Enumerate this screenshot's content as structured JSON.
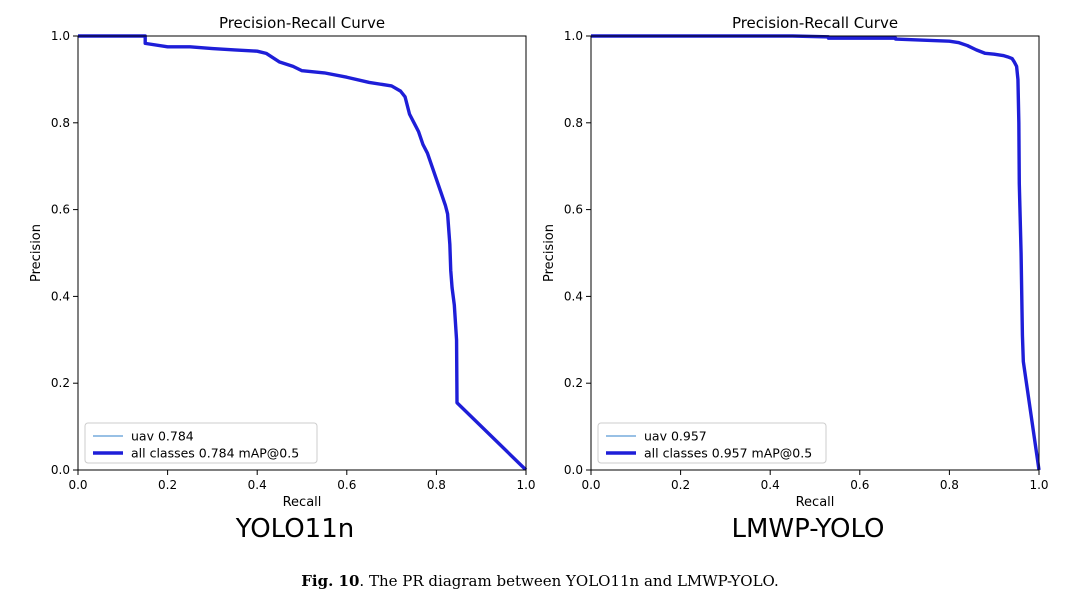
{
  "colors": {
    "curve": "#1e1ed8",
    "thin_curve": "#5b9bd5",
    "axes": "#000000"
  },
  "caption": {
    "label": "Fig. 10",
    "text": "The PR diagram between YOLO11n and LMWP-YOLO."
  },
  "chart_data": [
    {
      "type": "line",
      "title": "Precision-Recall Curve",
      "xlabel": "Recall",
      "ylabel": "Precision",
      "xlim": [
        0,
        1
      ],
      "ylim": [
        0,
        1
      ],
      "xticks": [
        "0.0",
        "0.2",
        "0.4",
        "0.6",
        "0.8",
        "1.0"
      ],
      "yticks": [
        "0.0",
        "0.2",
        "0.4",
        "0.6",
        "0.8",
        "1.0"
      ],
      "grid": false,
      "legend_position": "lower-left",
      "panel_label": "YOLO11n",
      "series": [
        {
          "name": "uav 0.784",
          "style": "thin",
          "x": [
            0.0,
            0.15,
            0.15,
            0.2,
            0.25,
            0.3,
            0.35,
            0.4,
            0.42,
            0.45,
            0.48,
            0.5,
            0.55,
            0.6,
            0.65,
            0.7,
            0.72,
            0.73,
            0.74,
            0.75,
            0.76,
            0.77,
            0.78,
            0.79,
            0.8,
            0.81,
            0.82,
            0.825,
            0.83,
            0.832,
            0.835,
            0.84,
            0.845,
            0.846,
            1.0
          ],
          "y": [
            1.0,
            1.0,
            0.983,
            0.975,
            0.975,
            0.971,
            0.968,
            0.965,
            0.96,
            0.94,
            0.93,
            0.92,
            0.915,
            0.905,
            0.893,
            0.885,
            0.873,
            0.86,
            0.82,
            0.8,
            0.78,
            0.75,
            0.73,
            0.7,
            0.67,
            0.64,
            0.61,
            0.59,
            0.52,
            0.46,
            0.42,
            0.38,
            0.3,
            0.155,
            0.0
          ]
        },
        {
          "name": "all classes 0.784 mAP@0.5",
          "style": "thick",
          "x": [
            0.0,
            0.15,
            0.15,
            0.2,
            0.25,
            0.3,
            0.35,
            0.4,
            0.42,
            0.45,
            0.48,
            0.5,
            0.55,
            0.6,
            0.65,
            0.7,
            0.72,
            0.73,
            0.74,
            0.75,
            0.76,
            0.77,
            0.78,
            0.79,
            0.8,
            0.81,
            0.82,
            0.825,
            0.83,
            0.832,
            0.835,
            0.84,
            0.845,
            0.846,
            1.0
          ],
          "y": [
            1.0,
            1.0,
            0.983,
            0.975,
            0.975,
            0.971,
            0.968,
            0.965,
            0.96,
            0.94,
            0.93,
            0.92,
            0.915,
            0.905,
            0.893,
            0.885,
            0.873,
            0.86,
            0.82,
            0.8,
            0.78,
            0.75,
            0.73,
            0.7,
            0.67,
            0.64,
            0.61,
            0.59,
            0.52,
            0.46,
            0.42,
            0.38,
            0.3,
            0.155,
            0.0
          ]
        }
      ]
    },
    {
      "type": "line",
      "title": "Precision-Recall Curve",
      "xlabel": "Recall",
      "ylabel": "Precision",
      "xlim": [
        0,
        1
      ],
      "ylim": [
        0,
        1
      ],
      "xticks": [
        "0.0",
        "0.2",
        "0.4",
        "0.6",
        "0.8",
        "1.0"
      ],
      "yticks": [
        "0.0",
        "0.2",
        "0.4",
        "0.6",
        "0.8",
        "1.0"
      ],
      "grid": false,
      "legend_position": "lower-left",
      "panel_label": "LMWP-YOLO",
      "series": [
        {
          "name": "uav 0.957",
          "style": "thin",
          "x": [
            0.0,
            0.45,
            0.53,
            0.53,
            0.6,
            0.68,
            0.68,
            0.75,
            0.8,
            0.82,
            0.84,
            0.86,
            0.88,
            0.9,
            0.92,
            0.93,
            0.94,
            0.945,
            0.95,
            0.953,
            0.955,
            0.956,
            0.957,
            0.96,
            0.962,
            0.963,
            0.965,
            1.0
          ],
          "y": [
            1.0,
            1.0,
            0.998,
            0.995,
            0.995,
            0.995,
            0.993,
            0.99,
            0.988,
            0.985,
            0.978,
            0.968,
            0.96,
            0.958,
            0.955,
            0.952,
            0.948,
            0.94,
            0.93,
            0.9,
            0.8,
            0.66,
            0.62,
            0.5,
            0.37,
            0.31,
            0.25,
            0.0
          ]
        },
        {
          "name": "all classes 0.957 mAP@0.5",
          "style": "thick",
          "x": [
            0.0,
            0.45,
            0.53,
            0.53,
            0.6,
            0.68,
            0.68,
            0.75,
            0.8,
            0.82,
            0.84,
            0.86,
            0.88,
            0.9,
            0.92,
            0.93,
            0.94,
            0.945,
            0.95,
            0.953,
            0.955,
            0.956,
            0.957,
            0.96,
            0.962,
            0.963,
            0.965,
            1.0
          ],
          "y": [
            1.0,
            1.0,
            0.998,
            0.995,
            0.995,
            0.995,
            0.993,
            0.99,
            0.988,
            0.985,
            0.978,
            0.968,
            0.96,
            0.958,
            0.955,
            0.952,
            0.948,
            0.94,
            0.93,
            0.9,
            0.8,
            0.66,
            0.62,
            0.5,
            0.37,
            0.31,
            0.25,
            0.0
          ]
        }
      ]
    }
  ]
}
